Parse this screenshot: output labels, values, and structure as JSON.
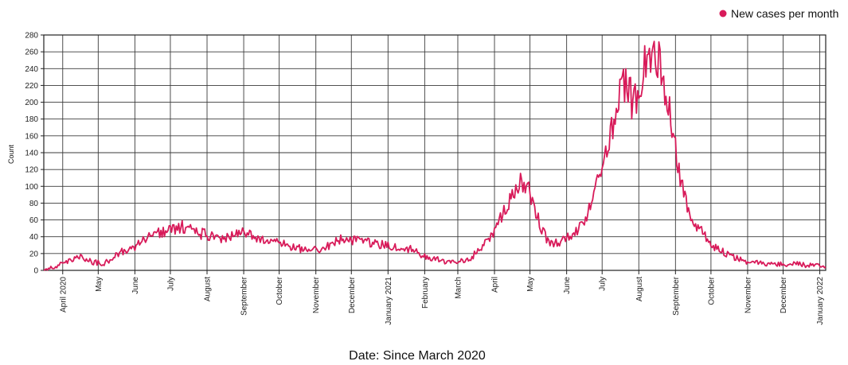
{
  "chart_data": {
    "type": "line",
    "title": "",
    "xlabel": "Date: Since March 2020",
    "ylabel": "Count",
    "ylim": [
      0,
      280
    ],
    "y_ticks": [
      0,
      20,
      40,
      60,
      80,
      100,
      120,
      140,
      160,
      180,
      200,
      220,
      240,
      260,
      280
    ],
    "x_range": [
      "2020-03-15",
      "2022-01-05"
    ],
    "x_ticks": [
      {
        "date": "2020-03-31",
        "label": "April 2020"
      },
      {
        "date": "2020-04-30",
        "label": "May"
      },
      {
        "date": "2020-05-31",
        "label": "June"
      },
      {
        "date": "2020-06-30",
        "label": "July"
      },
      {
        "date": "2020-07-31",
        "label": "August"
      },
      {
        "date": "2020-08-31",
        "label": "September"
      },
      {
        "date": "2020-09-30",
        "label": "October"
      },
      {
        "date": "2020-10-31",
        "label": "November"
      },
      {
        "date": "2020-11-30",
        "label": "December"
      },
      {
        "date": "2020-12-31",
        "label": "January 2021"
      },
      {
        "date": "2021-01-31",
        "label": "February"
      },
      {
        "date": "2021-02-28",
        "label": "March"
      },
      {
        "date": "2021-03-31",
        "label": "April"
      },
      {
        "date": "2021-04-30",
        "label": "May"
      },
      {
        "date": "2021-05-31",
        "label": "June"
      },
      {
        "date": "2021-06-30",
        "label": "July"
      },
      {
        "date": "2021-07-31",
        "label": "August"
      },
      {
        "date": "2021-08-31",
        "label": "September"
      },
      {
        "date": "2021-09-30",
        "label": "October"
      },
      {
        "date": "2021-10-31",
        "label": "November"
      },
      {
        "date": "2021-11-30",
        "label": "December"
      },
      {
        "date": "2021-12-31",
        "label": "January 2022"
      }
    ],
    "grid": true,
    "legend_position": "top-right",
    "series": [
      {
        "name": "New cases per month",
        "color": "#d81b5a",
        "points": [
          [
            "2020-03-15",
            2
          ],
          [
            "2020-03-25",
            4
          ],
          [
            "2020-04-05",
            12
          ],
          [
            "2020-04-15",
            16
          ],
          [
            "2020-04-25",
            10
          ],
          [
            "2020-05-05",
            8
          ],
          [
            "2020-05-12",
            15
          ],
          [
            "2020-05-20",
            22
          ],
          [
            "2020-05-31",
            28
          ],
          [
            "2020-06-10",
            38
          ],
          [
            "2020-06-20",
            45
          ],
          [
            "2020-06-30",
            48
          ],
          [
            "2020-07-10",
            52
          ],
          [
            "2020-07-20",
            46
          ],
          [
            "2020-07-31",
            42
          ],
          [
            "2020-08-10",
            38
          ],
          [
            "2020-08-20",
            40
          ],
          [
            "2020-08-31",
            45
          ],
          [
            "2020-09-10",
            38
          ],
          [
            "2020-09-20",
            35
          ],
          [
            "2020-09-30",
            32
          ],
          [
            "2020-10-10",
            28
          ],
          [
            "2020-10-20",
            25
          ],
          [
            "2020-10-31",
            24
          ],
          [
            "2020-11-08",
            26
          ],
          [
            "2020-11-15",
            35
          ],
          [
            "2020-11-25",
            38
          ],
          [
            "2020-12-05",
            35
          ],
          [
            "2020-12-15",
            33
          ],
          [
            "2020-12-31",
            30
          ],
          [
            "2021-01-10",
            27
          ],
          [
            "2021-01-20",
            25
          ],
          [
            "2021-01-31",
            17
          ],
          [
            "2021-02-10",
            13
          ],
          [
            "2021-02-20",
            10
          ],
          [
            "2021-02-28",
            10
          ],
          [
            "2021-03-08",
            12
          ],
          [
            "2021-03-15",
            20
          ],
          [
            "2021-03-25",
            35
          ],
          [
            "2021-04-05",
            60
          ],
          [
            "2021-04-15",
            90
          ],
          [
            "2021-04-23",
            108
          ],
          [
            "2021-04-30",
            92
          ],
          [
            "2021-05-08",
            55
          ],
          [
            "2021-05-15",
            35
          ],
          [
            "2021-05-25",
            32
          ],
          [
            "2021-06-05",
            42
          ],
          [
            "2021-06-15",
            60
          ],
          [
            "2021-06-22",
            85
          ],
          [
            "2021-06-30",
            120
          ],
          [
            "2021-07-06",
            150
          ],
          [
            "2021-07-12",
            200
          ],
          [
            "2021-07-20",
            225
          ],
          [
            "2021-07-27",
            195
          ],
          [
            "2021-07-31",
            215
          ],
          [
            "2021-08-05",
            245
          ],
          [
            "2021-08-10",
            255
          ],
          [
            "2021-08-15",
            258
          ],
          [
            "2021-08-20",
            230
          ],
          [
            "2021-08-25",
            195
          ],
          [
            "2021-08-31",
            150
          ],
          [
            "2021-09-05",
            100
          ],
          [
            "2021-09-15",
            60
          ],
          [
            "2021-09-30",
            30
          ],
          [
            "2021-10-15",
            18
          ],
          [
            "2021-10-31",
            10
          ],
          [
            "2021-11-15",
            8
          ],
          [
            "2021-11-30",
            7
          ],
          [
            "2021-12-10",
            8
          ],
          [
            "2021-12-20",
            6
          ],
          [
            "2022-01-05",
            5
          ]
        ]
      }
    ]
  }
}
